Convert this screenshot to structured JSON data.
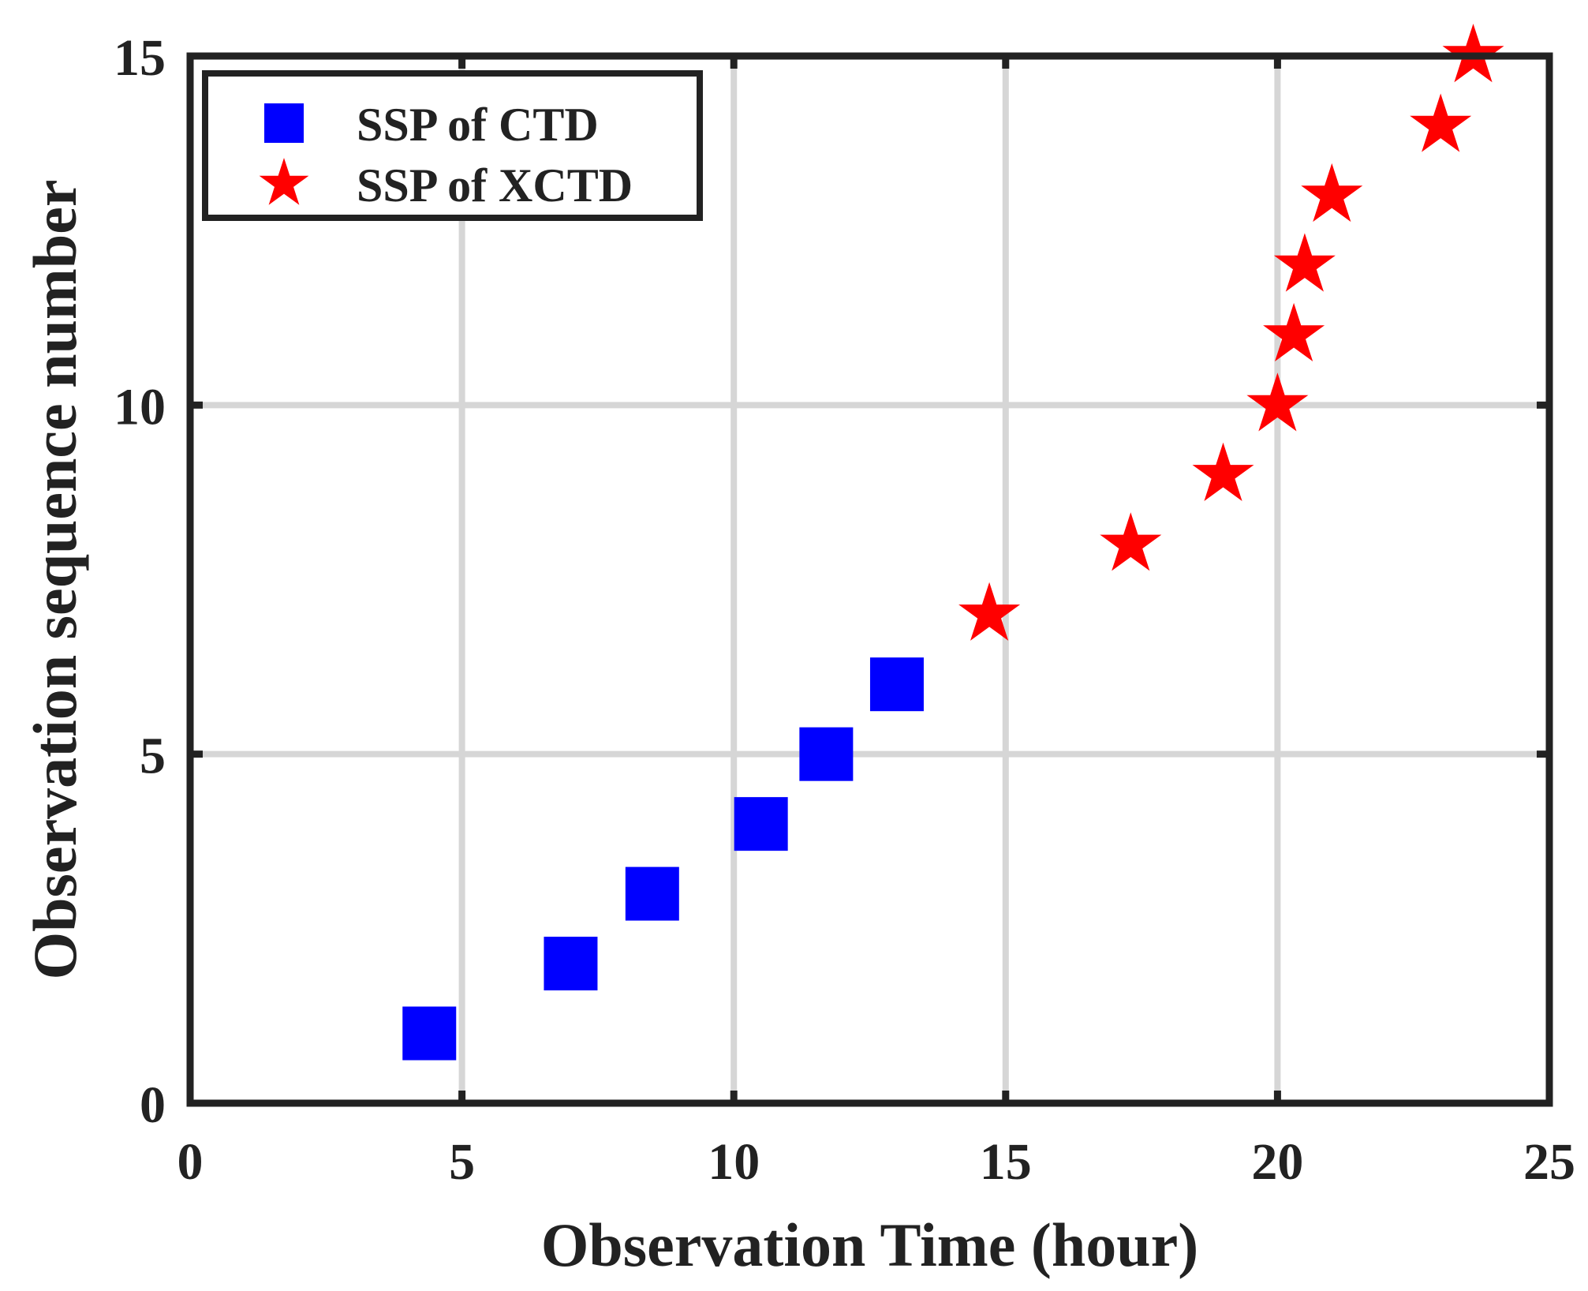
{
  "chart_data": {
    "type": "scatter",
    "title": "",
    "xlabel": "Observation Time (hour)",
    "ylabel": "Observation sequence number",
    "xlim": [
      0,
      25
    ],
    "ylim": [
      0,
      15
    ],
    "x_ticks": [
      0,
      5,
      10,
      15,
      20,
      25
    ],
    "y_ticks": [
      0,
      5,
      10,
      15
    ],
    "x_tick_labels": [
      "0",
      "5",
      "10",
      "15",
      "20",
      "25"
    ],
    "y_tick_labels": [
      "0",
      "5",
      "10",
      "15"
    ],
    "grid": true,
    "legend": "top-left",
    "series": [
      {
        "name": "SSP of CTD",
        "marker": "square",
        "color": "#0000ff",
        "x": [
          4.4,
          7.0,
          8.5,
          10.5,
          11.7,
          13.0
        ],
        "y": [
          1,
          2,
          3,
          4,
          5,
          6
        ]
      },
      {
        "name": "SSP of XCTD",
        "marker": "star",
        "color": "#ff0000",
        "x": [
          14.7,
          17.3,
          19.0,
          20.0,
          20.3,
          20.5,
          21.0,
          23.0,
          23.6
        ],
        "y": [
          7,
          8,
          9,
          10,
          11,
          12,
          13,
          14,
          15
        ]
      }
    ]
  }
}
